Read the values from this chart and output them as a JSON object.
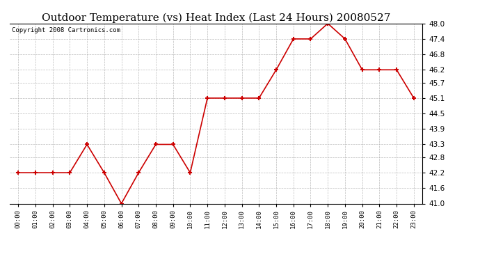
{
  "title": "Outdoor Temperature (vs) Heat Index (Last 24 Hours) 20080527",
  "copyright": "Copyright 2008 Cartronics.com",
  "x_labels": [
    "00:00",
    "01:00",
    "02:00",
    "03:00",
    "04:00",
    "05:00",
    "06:00",
    "07:00",
    "08:00",
    "09:00",
    "10:00",
    "11:00",
    "12:00",
    "13:00",
    "14:00",
    "15:00",
    "16:00",
    "17:00",
    "18:00",
    "19:00",
    "20:00",
    "21:00",
    "22:00",
    "23:00"
  ],
  "y_values": [
    42.2,
    42.2,
    42.2,
    42.2,
    43.3,
    42.2,
    41.0,
    42.2,
    43.3,
    43.3,
    42.2,
    45.1,
    45.1,
    45.1,
    45.1,
    46.2,
    47.4,
    47.4,
    48.0,
    47.4,
    46.2,
    46.2,
    46.2,
    45.1
  ],
  "line_color": "#cc0000",
  "marker": "+",
  "marker_size": 5,
  "bg_color": "#ffffff",
  "plot_bg_color": "#ffffff",
  "grid_color": "#aaaaaa",
  "ylim": [
    41.0,
    48.0
  ],
  "yticks": [
    41.0,
    41.6,
    42.2,
    42.8,
    43.3,
    43.9,
    44.5,
    45.1,
    45.7,
    46.2,
    46.8,
    47.4,
    48.0
  ],
  "title_fontsize": 11,
  "copyright_fontsize": 6.5
}
